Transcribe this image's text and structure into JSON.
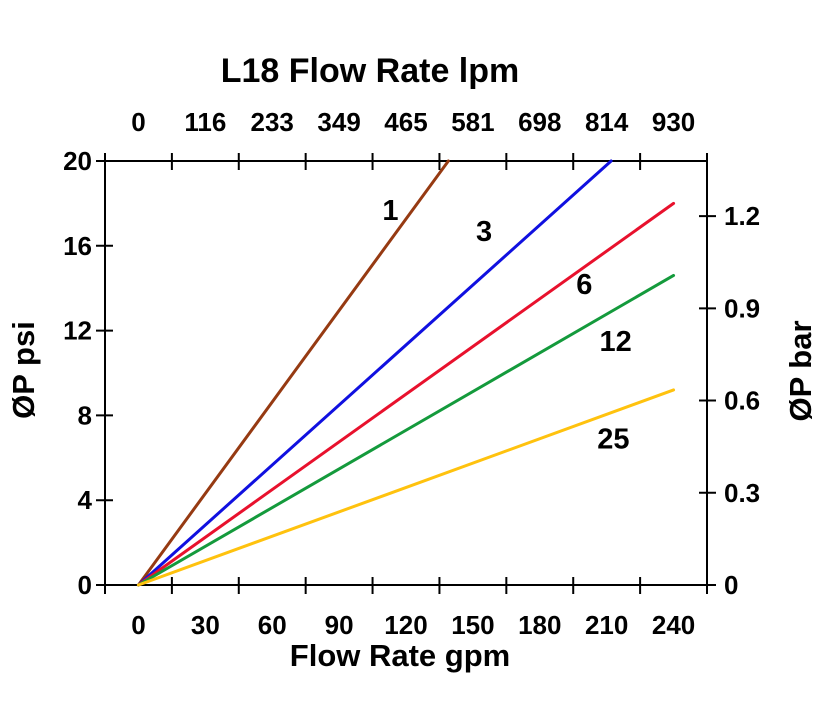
{
  "chart_data": {
    "type": "line",
    "title": "L18 Flow Rate lpm",
    "top_axis": {
      "label": "L18 Flow Rate lpm",
      "unit": "lpm",
      "ticks": [
        "0",
        "116",
        "233",
        "349",
        "465",
        "581",
        "698",
        "814",
        "930"
      ]
    },
    "bottom_axis": {
      "label": "Flow Rate gpm",
      "unit": "gpm",
      "ticks": [
        "0",
        "30",
        "60",
        "90",
        "120",
        "150",
        "180",
        "210",
        "240"
      ]
    },
    "left_axis": {
      "label": "ØP psi",
      "unit": "psi",
      "ticks": [
        "0",
        "4",
        "8",
        "12",
        "16",
        "20"
      ],
      "range": [
        0,
        20
      ]
    },
    "right_axis": {
      "label": "ØP bar",
      "unit": "bar",
      "ticks": [
        "0",
        "0.3",
        "0.6",
        "0.9",
        "1.2"
      ],
      "psi_per_bar": 14.5
    },
    "series": [
      {
        "label": "1",
        "color": "#963A12",
        "points_gpm_psi": [
          [
            0,
            0
          ],
          [
            139,
            20
          ]
        ],
        "label_at_gpm_psi": [
          113,
          17.7
        ]
      },
      {
        "label": "3",
        "color": "#1010E0",
        "points_gpm_psi": [
          [
            0,
            0
          ],
          [
            212,
            20
          ]
        ],
        "label_at_gpm_psi": [
          155,
          16.7
        ]
      },
      {
        "label": "6",
        "color": "#E8112D",
        "points_gpm_psi": [
          [
            0,
            0
          ],
          [
            240,
            18
          ]
        ],
        "label_at_gpm_psi": [
          200,
          14.2
        ]
      },
      {
        "label": "12",
        "color": "#149A3C",
        "points_gpm_psi": [
          [
            0,
            0
          ],
          [
            240,
            14.6
          ]
        ],
        "label_at_gpm_psi": [
          214,
          11.5
        ]
      },
      {
        "label": "25",
        "color": "#FFC20E",
        "points_gpm_psi": [
          [
            0,
            0
          ],
          [
            240,
            9.2
          ]
        ],
        "label_at_gpm_psi": [
          213,
          6.9
        ]
      }
    ],
    "axes_box": true,
    "grid": false,
    "background": "#FFFFFF",
    "text_color": "#000000"
  }
}
